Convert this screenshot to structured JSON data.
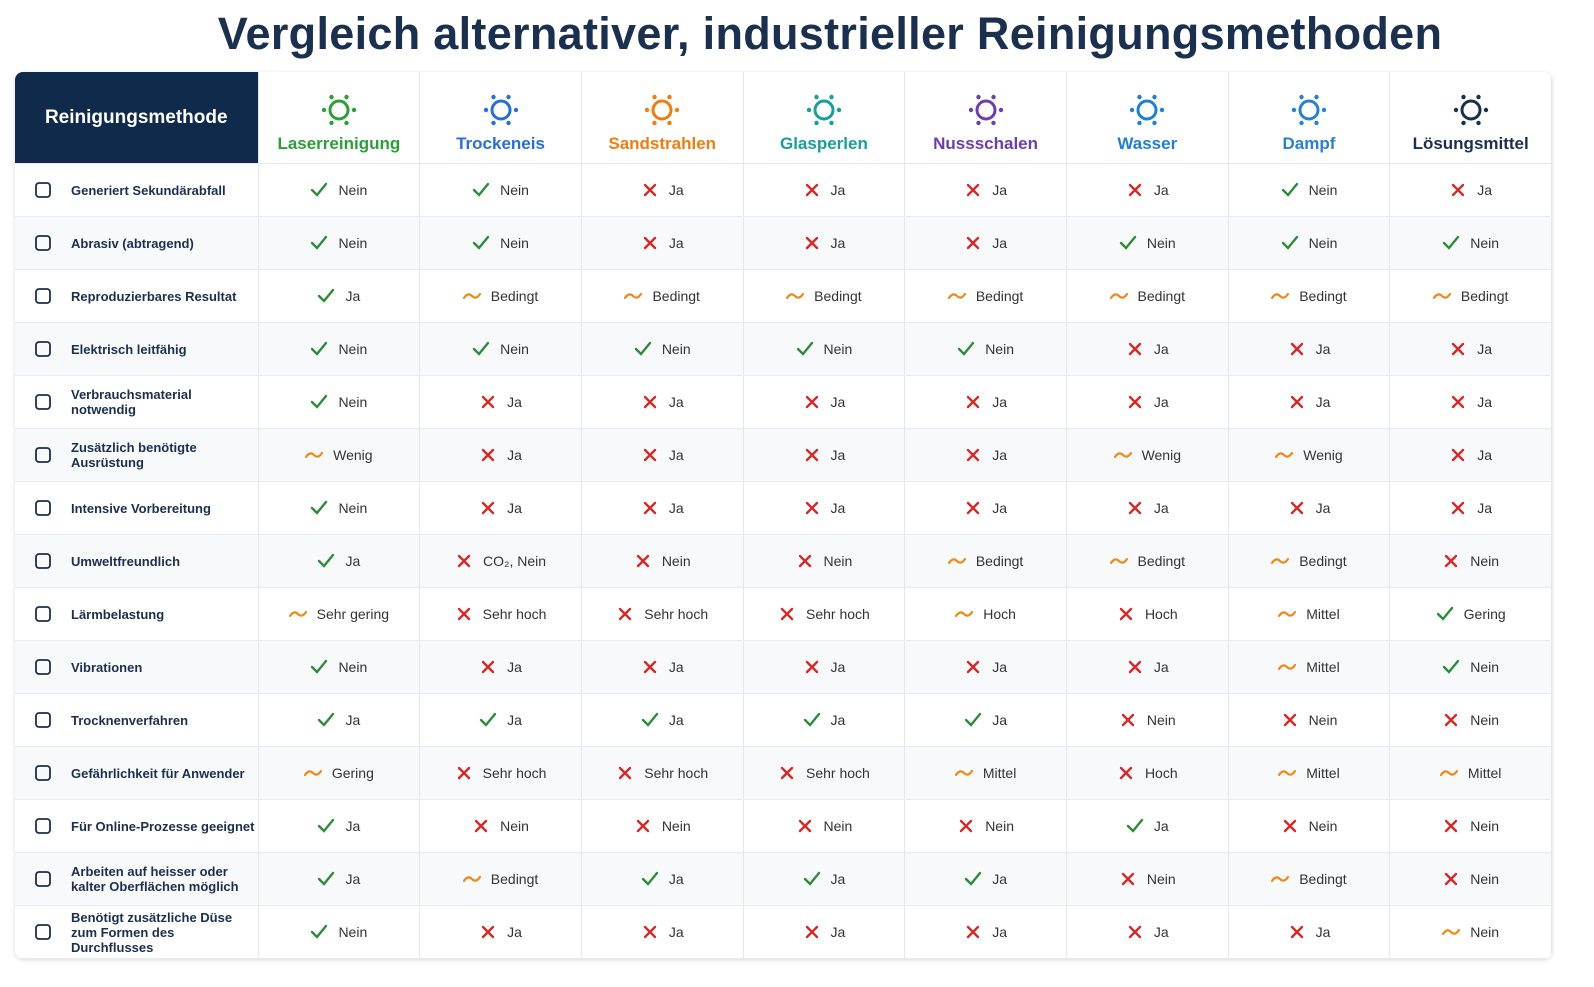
{
  "title": "Vergleich alternativer, industrieller Reinigungsmethoden",
  "table": {
    "header": "Reinigungsmethode",
    "columns": [
      {
        "name": "Laserreinigung",
        "color": "#2e9e3a"
      },
      {
        "name": "Trockeneis",
        "color": "#2a6fd6"
      },
      {
        "name": "Sandstrahlen",
        "color": "#ef7d12"
      },
      {
        "name": "Glasperlen",
        "color": "#1a9e9a"
      },
      {
        "name": "Nussschalen",
        "color": "#6a3fb0"
      },
      {
        "name": "Wasser",
        "color": "#1f7fd6"
      },
      {
        "name": "Dampf",
        "color": "#2b80d0"
      },
      {
        "name": "Lösungsmittel",
        "color": "#1b2f4e"
      }
    ],
    "rows": [
      {
        "label": "Generiert Sekundärabfall",
        "cells": [
          {
            "status": "yes",
            "text": "Nein"
          },
          {
            "status": "yes",
            "text": "Nein"
          },
          {
            "status": "no",
            "text": "Ja"
          },
          {
            "status": "no",
            "text": "Ja"
          },
          {
            "status": "no",
            "text": "Ja"
          },
          {
            "status": "no",
            "text": "Ja"
          },
          {
            "status": "yes",
            "text": "Nein"
          },
          {
            "status": "no",
            "text": "Ja"
          }
        ]
      },
      {
        "label": "Abrasiv (abtragend)",
        "cells": [
          {
            "status": "yes",
            "text": "Nein"
          },
          {
            "status": "yes",
            "text": "Nein"
          },
          {
            "status": "no",
            "text": "Ja"
          },
          {
            "status": "no",
            "text": "Ja"
          },
          {
            "status": "no",
            "text": "Ja"
          },
          {
            "status": "yes",
            "text": "Nein"
          },
          {
            "status": "yes",
            "text": "Nein"
          },
          {
            "status": "yes",
            "text": "Nein"
          }
        ]
      },
      {
        "label": "Reproduzierbares Resultat",
        "cells": [
          {
            "status": "yes",
            "text": "Ja"
          },
          {
            "status": "partial",
            "text": "Bedingt"
          },
          {
            "status": "partial",
            "text": "Bedingt"
          },
          {
            "status": "partial",
            "text": "Bedingt"
          },
          {
            "status": "partial",
            "text": "Bedingt"
          },
          {
            "status": "partial",
            "text": "Bedingt"
          },
          {
            "status": "partial",
            "text": "Bedingt"
          },
          {
            "status": "partial",
            "text": "Bedingt"
          }
        ]
      },
      {
        "label": "Elektrisch leitfähig",
        "cells": [
          {
            "status": "yes",
            "text": "Nein"
          },
          {
            "status": "yes",
            "text": "Nein"
          },
          {
            "status": "yes",
            "text": "Nein"
          },
          {
            "status": "yes",
            "text": "Nein"
          },
          {
            "status": "yes",
            "text": "Nein"
          },
          {
            "status": "no",
            "text": "Ja"
          },
          {
            "status": "no",
            "text": "Ja"
          },
          {
            "status": "no",
            "text": "Ja"
          }
        ]
      },
      {
        "label": "Verbrauchsmaterial notwendig",
        "cells": [
          {
            "status": "yes",
            "text": "Nein"
          },
          {
            "status": "no",
            "text": "Ja"
          },
          {
            "status": "no",
            "text": "Ja"
          },
          {
            "status": "no",
            "text": "Ja"
          },
          {
            "status": "no",
            "text": "Ja"
          },
          {
            "status": "no",
            "text": "Ja"
          },
          {
            "status": "no",
            "text": "Ja"
          },
          {
            "status": "no",
            "text": "Ja"
          }
        ]
      },
      {
        "label": "Zusätzlich benötigte Ausrüstung",
        "cells": [
          {
            "status": "partial",
            "text": "Wenig"
          },
          {
            "status": "no",
            "text": "Ja"
          },
          {
            "status": "no",
            "text": "Ja"
          },
          {
            "status": "no",
            "text": "Ja"
          },
          {
            "status": "no",
            "text": "Ja"
          },
          {
            "status": "partial",
            "text": "Wenig"
          },
          {
            "status": "partial",
            "text": "Wenig"
          },
          {
            "status": "no",
            "text": "Ja"
          }
        ]
      },
      {
        "label": "Intensive Vorbereitung",
        "cells": [
          {
            "status": "yes",
            "text": "Nein"
          },
          {
            "status": "no",
            "text": "Ja"
          },
          {
            "status": "no",
            "text": "Ja"
          },
          {
            "status": "no",
            "text": "Ja"
          },
          {
            "status": "no",
            "text": "Ja"
          },
          {
            "status": "no",
            "text": "Ja"
          },
          {
            "status": "no",
            "text": "Ja"
          },
          {
            "status": "no",
            "text": "Ja"
          }
        ]
      },
      {
        "label": "Umweltfreundlich",
        "cells": [
          {
            "status": "yes",
            "text": "Ja"
          },
          {
            "status": "no",
            "text": "CO₂, Nein"
          },
          {
            "status": "no",
            "text": "Nein"
          },
          {
            "status": "no",
            "text": "Nein"
          },
          {
            "status": "partial",
            "text": "Bedingt"
          },
          {
            "status": "partial",
            "text": "Bedingt"
          },
          {
            "status": "partial",
            "text": "Bedingt"
          },
          {
            "status": "no",
            "text": "Nein"
          }
        ]
      },
      {
        "label": "Lärmbelastung",
        "cells": [
          {
            "status": "partial",
            "text": "Sehr gering"
          },
          {
            "status": "no",
            "text": "Sehr hoch"
          },
          {
            "status": "no",
            "text": "Sehr hoch"
          },
          {
            "status": "no",
            "text": "Sehr hoch"
          },
          {
            "status": "partial",
            "text": "Hoch"
          },
          {
            "status": "no",
            "text": "Hoch"
          },
          {
            "status": "partial",
            "text": "Mittel"
          },
          {
            "status": "yes",
            "text": "Gering"
          }
        ]
      },
      {
        "label": "Vibrationen",
        "cells": [
          {
            "status": "yes",
            "text": "Nein"
          },
          {
            "status": "no",
            "text": "Ja"
          },
          {
            "status": "no",
            "text": "Ja"
          },
          {
            "status": "no",
            "text": "Ja"
          },
          {
            "status": "no",
            "text": "Ja"
          },
          {
            "status": "no",
            "text": "Ja"
          },
          {
            "status": "partial",
            "text": "Mittel"
          },
          {
            "status": "yes",
            "text": "Nein"
          }
        ]
      },
      {
        "label": "Trocknenverfahren",
        "cells": [
          {
            "status": "yes",
            "text": "Ja"
          },
          {
            "status": "yes",
            "text": "Ja"
          },
          {
            "status": "yes",
            "text": "Ja"
          },
          {
            "status": "yes",
            "text": "Ja"
          },
          {
            "status": "yes",
            "text": "Ja"
          },
          {
            "status": "no",
            "text": "Nein"
          },
          {
            "status": "no",
            "text": "Nein"
          },
          {
            "status": "no",
            "text": "Nein"
          }
        ]
      },
      {
        "label": "Gefährlichkeit für Anwender",
        "cells": [
          {
            "status": "partial",
            "text": "Gering"
          },
          {
            "status": "no",
            "text": "Sehr hoch"
          },
          {
            "status": "no",
            "text": "Sehr hoch"
          },
          {
            "status": "no",
            "text": "Sehr hoch"
          },
          {
            "status": "partial",
            "text": "Mittel"
          },
          {
            "status": "no",
            "text": "Hoch"
          },
          {
            "status": "partial",
            "text": "Mittel"
          },
          {
            "status": "partial",
            "text": "Mittel"
          }
        ]
      },
      {
        "label": "Für Online-Prozesse geeignet",
        "cells": [
          {
            "status": "yes",
            "text": "Ja"
          },
          {
            "status": "no",
            "text": "Nein"
          },
          {
            "status": "no",
            "text": "Nein"
          },
          {
            "status": "no",
            "text": "Nein"
          },
          {
            "status": "no",
            "text": "Nein"
          },
          {
            "status": "yes",
            "text": "Ja"
          },
          {
            "status": "no",
            "text": "Nein"
          },
          {
            "status": "no",
            "text": "Nein"
          }
        ]
      },
      {
        "label": "Arbeiten auf heisser oder kalter Oberflächen möglich",
        "cells": [
          {
            "status": "yes",
            "text": "Ja"
          },
          {
            "status": "partial",
            "text": "Bedingt"
          },
          {
            "status": "yes",
            "text": "Ja"
          },
          {
            "status": "yes",
            "text": "Ja"
          },
          {
            "status": "yes",
            "text": "Ja"
          },
          {
            "status": "no",
            "text": "Nein"
          },
          {
            "status": "partial",
            "text": "Bedingt"
          },
          {
            "status": "no",
            "text": "Nein"
          }
        ]
      },
      {
        "label": "Benötigt zusätzliche Düse zum Formen des Durchflusses",
        "cells": [
          {
            "status": "yes",
            "text": "Nein"
          },
          {
            "status": "no",
            "text": "Ja"
          },
          {
            "status": "no",
            "text": "Ja"
          },
          {
            "status": "no",
            "text": "Ja"
          },
          {
            "status": "no",
            "text": "Ja"
          },
          {
            "status": "no",
            "text": "Ja"
          },
          {
            "status": "no",
            "text": "Ja"
          },
          {
            "status": "partial",
            "text": "Nein"
          }
        ]
      }
    ]
  }
}
